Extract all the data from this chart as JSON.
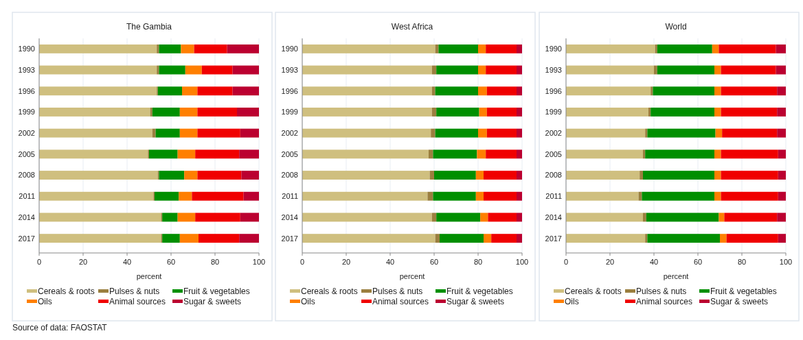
{
  "chart_data": [
    {
      "type": "bar",
      "title": "The Gambia",
      "orientation": "horizontal",
      "stacked": true,
      "categories": [
        "1990",
        "1993",
        "1996",
        "1999",
        "2002",
        "2005",
        "2008",
        "2011",
        "2014",
        "2017"
      ],
      "xlim": [
        0,
        100
      ],
      "xticks": [
        0,
        20,
        40,
        60,
        80,
        100
      ],
      "xlabel": "percent",
      "grid": "x",
      "legend": "bottom",
      "annotations": [
        "Source of data: FAOSTAT"
      ],
      "series": [
        {
          "name": "Cereals & roots",
          "color": "#cfbf7f",
          "values": [
            53.5,
            53.5,
            53.5,
            50.5,
            51.5,
            49.5,
            54,
            52,
            55.5,
            55.5
          ]
        },
        {
          "name": "Pulses & nuts",
          "color": "#9b7f3f",
          "values": [
            1,
            1,
            0.5,
            1,
            1.5,
            0.5,
            0.5,
            0.5,
            0.5,
            0.5
          ]
        },
        {
          "name": "Fruit & vegetables",
          "color": "#008f00",
          "values": [
            10,
            12,
            11,
            12.5,
            11,
            13,
            11.5,
            11,
            7,
            8
          ]
        },
        {
          "name": "Oils",
          "color": "#ff7f00",
          "values": [
            6,
            7.5,
            7,
            8,
            8,
            8,
            6,
            6,
            8,
            8.5
          ]
        },
        {
          "name": "Animal sources",
          "color": "#f00000",
          "values": [
            15,
            14,
            16,
            18,
            19.5,
            20,
            20,
            23.5,
            20.5,
            18.5
          ]
        },
        {
          "name": "Sugar & sweets",
          "color": "#bb0030",
          "values": [
            14.5,
            12,
            12,
            10,
            8.5,
            9,
            8,
            7,
            8.5,
            9
          ]
        }
      ]
    },
    {
      "type": "bar",
      "title": "West Africa",
      "orientation": "horizontal",
      "stacked": true,
      "categories": [
        "1990",
        "1993",
        "1996",
        "1999",
        "2002",
        "2005",
        "2008",
        "2011",
        "2014",
        "2017"
      ],
      "xlim": [
        0,
        100
      ],
      "xticks": [
        0,
        20,
        40,
        60,
        80,
        100
      ],
      "xlabel": "percent",
      "grid": "x",
      "legend": "bottom",
      "series": [
        {
          "name": "Cereals & roots",
          "color": "#cfbf7f",
          "values": [
            60.5,
            59,
            59,
            59,
            58.5,
            57.5,
            58,
            57,
            59,
            60.5
          ]
        },
        {
          "name": "Pulses & nuts",
          "color": "#9b7f3f",
          "values": [
            1.5,
            2,
            1.5,
            2,
            2,
            2,
            2,
            2.5,
            2,
            2
          ]
        },
        {
          "name": "Fruit & vegetables",
          "color": "#008f00",
          "values": [
            18,
            19,
            19.5,
            19.5,
            19.5,
            20,
            19,
            19.5,
            20,
            20
          ]
        },
        {
          "name": "Oils",
          "color": "#ff7f00",
          "values": [
            3.5,
            3.5,
            4,
            3.5,
            4,
            4,
            3.5,
            3.5,
            3.5,
            3.5
          ]
        },
        {
          "name": "Animal sources",
          "color": "#f00000",
          "values": [
            14,
            14,
            13.5,
            13.5,
            13.5,
            14,
            15,
            15,
            13,
            11.5
          ]
        },
        {
          "name": "Sugar & sweets",
          "color": "#bb0030",
          "values": [
            2.5,
            2.5,
            2.5,
            2.5,
            2.5,
            2.5,
            2.5,
            2.5,
            2.5,
            2.5
          ]
        }
      ]
    },
    {
      "type": "bar",
      "title": "World",
      "orientation": "horizontal",
      "stacked": true,
      "categories": [
        "1990",
        "1993",
        "1996",
        "1999",
        "2002",
        "2005",
        "2008",
        "2011",
        "2014",
        "2017"
      ],
      "xlim": [
        0,
        100
      ],
      "xticks": [
        0,
        20,
        40,
        60,
        80,
        100
      ],
      "xlabel": "percent",
      "grid": "x",
      "legend": "bottom",
      "series": [
        {
          "name": "Cereals & roots",
          "color": "#cfbf7f",
          "values": [
            40.5,
            40,
            38.5,
            37.5,
            36,
            35,
            33.5,
            33,
            35,
            36
          ]
        },
        {
          "name": "Pulses & nuts",
          "color": "#9b7f3f",
          "values": [
            1,
            1.5,
            1,
            1,
            1,
            1,
            1.5,
            1.5,
            1.5,
            1
          ]
        },
        {
          "name": "Fruit & vegetables",
          "color": "#008f00",
          "values": [
            25,
            26,
            28,
            29,
            31,
            31.5,
            32.5,
            33,
            33,
            33
          ]
        },
        {
          "name": "Oils",
          "color": "#ff7f00",
          "values": [
            3,
            3,
            3,
            3,
            3,
            3,
            3,
            3,
            2.5,
            3
          ]
        },
        {
          "name": "Animal sources",
          "color": "#f00000",
          "values": [
            26,
            25,
            25.5,
            25.5,
            25,
            26,
            26,
            26,
            24,
            23.5
          ]
        },
        {
          "name": "Sugar & sweets",
          "color": "#bb0030",
          "values": [
            4.5,
            4.5,
            4,
            4,
            4,
            3.5,
            3.5,
            3.5,
            4,
            3.5
          ]
        }
      ]
    }
  ]
}
